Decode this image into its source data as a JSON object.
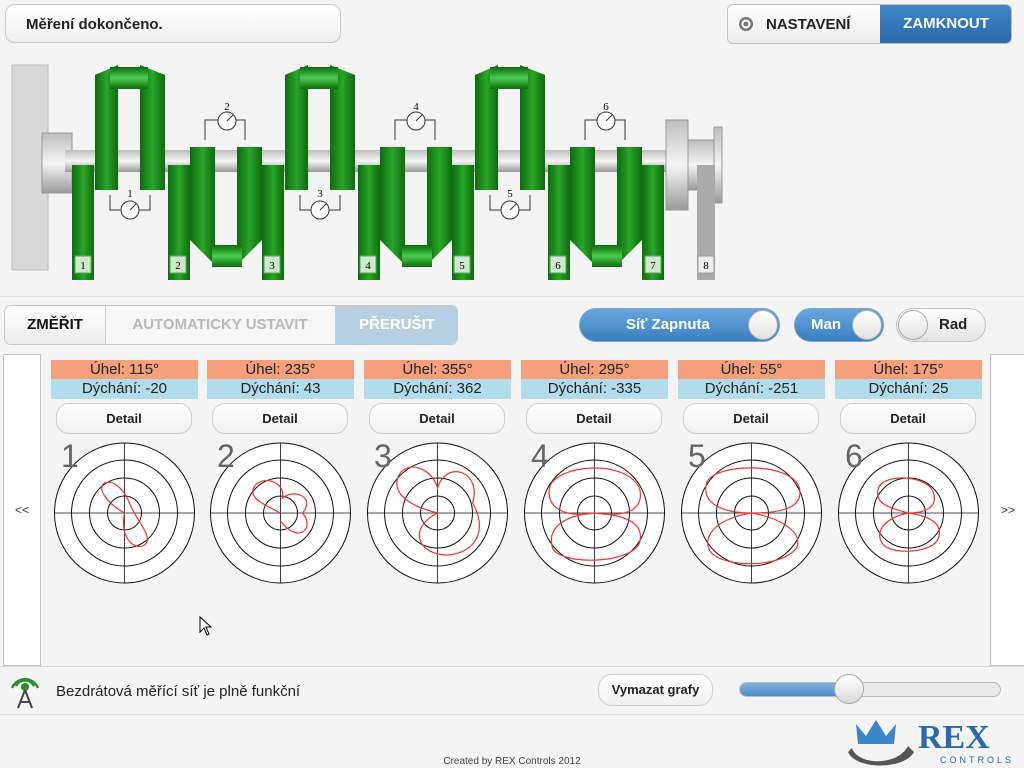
{
  "header": {
    "status": "Měření dokončeno.",
    "settings_label": "NASTAVENÍ",
    "lock_label": "ZAMKNOUT"
  },
  "engine": {
    "cylinders": [
      "1",
      "2",
      "3",
      "4",
      "5",
      "6",
      "7",
      "8"
    ],
    "gauges": [
      "1",
      "2",
      "3",
      "4",
      "5",
      "6"
    ]
  },
  "controls": {
    "measure_label": "ZMĚŘIT",
    "auto_label": "AUTOMATICKY USTAVIT",
    "abort_label": "PŘERUŠIT",
    "network_toggle": {
      "label": "Síť Zapnuta",
      "state": "on"
    },
    "mode_toggle": {
      "label": "Man",
      "state": "on"
    },
    "rad_toggle": {
      "label": "Rad",
      "state": "off"
    }
  },
  "panel": {
    "prev_label": "<<",
    "next_label": ">>",
    "cards": [
      {
        "number": "1",
        "angle": "Úhel: 115°",
        "breath": "Dýchání: -20",
        "detail": "Detail"
      },
      {
        "number": "2",
        "angle": "Úhel: 235°",
        "breath": "Dýchání: 43",
        "detail": "Detail"
      },
      {
        "number": "3",
        "angle": "Úhel: 355°",
        "breath": "Dýchání: 362",
        "detail": "Detail"
      },
      {
        "number": "4",
        "angle": "Úhel: 295°",
        "breath": "Dýchání: -335",
        "detail": "Detail"
      },
      {
        "number": "5",
        "angle": "Úhel: 55°",
        "breath": "Dýchání: -251",
        "detail": "Detail"
      },
      {
        "number": "6",
        "angle": "Úhel: 175°",
        "breath": "Dýchání: 25",
        "detail": "Detail"
      }
    ]
  },
  "footer_bar": {
    "network_status": "Bezdrátová měřící síť je plně funkční",
    "clear_label": "Vymazat grafy",
    "slider_value": 0.42
  },
  "footer": {
    "credit": "Created by REX Controls 2012",
    "logo_text": "REX",
    "logo_sub": "CONTROLS"
  },
  "colors": {
    "accent": "#3b7fc2",
    "crank": "#1a8a1a",
    "angle_bg": "#f4a07a",
    "breath_bg": "#b2dcec",
    "trace": "#e23a3a"
  }
}
